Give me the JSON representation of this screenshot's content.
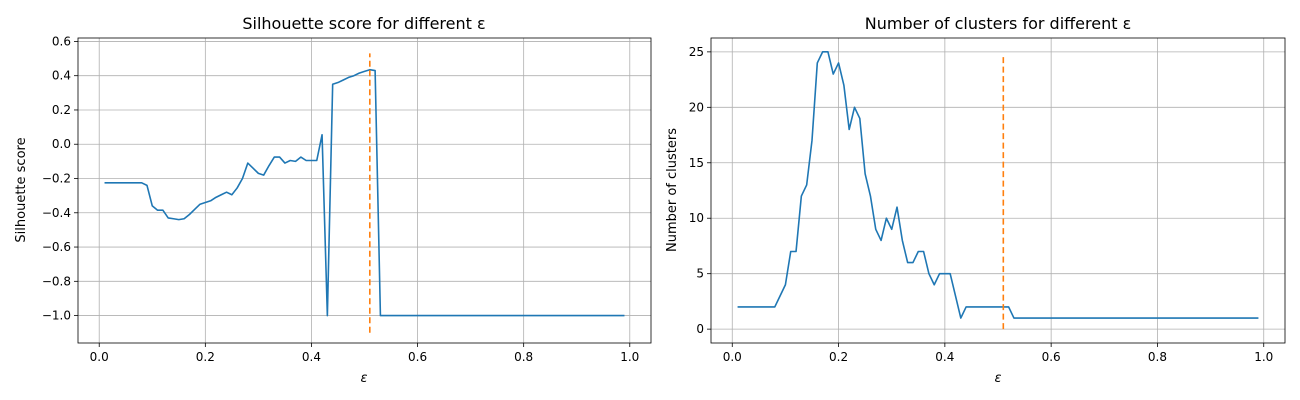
{
  "chart_data": [
    {
      "type": "line",
      "title": "Silhouette score for different ε",
      "xlabel": "ε",
      "ylabel": "Silhouette score",
      "xlim": [
        -0.04,
        1.04
      ],
      "ylim": [
        -1.16,
        0.62
      ],
      "xticks": [
        0.0,
        0.2,
        0.4,
        0.6,
        0.8,
        1.0
      ],
      "xtick_labels": [
        "0.0",
        "0.2",
        "0.4",
        "0.6",
        "0.8",
        "1.0"
      ],
      "yticks": [
        -1.0,
        -0.8,
        -0.6,
        -0.4,
        -0.2,
        0.0,
        0.2,
        0.4,
        0.6
      ],
      "ytick_labels": [
        "−1.0",
        "−0.8",
        "−0.6",
        "−0.4",
        "−0.2",
        "0.0",
        "0.2",
        "0.4",
        "0.6"
      ],
      "grid": true,
      "series": [
        {
          "color": "#1f77b4",
          "style": "solid",
          "x": [
            0.01,
            0.02,
            0.03,
            0.04,
            0.05,
            0.06,
            0.07,
            0.08,
            0.09,
            0.1,
            0.11,
            0.12,
            0.13,
            0.14,
            0.15,
            0.16,
            0.17,
            0.18,
            0.19,
            0.2,
            0.21,
            0.22,
            0.23,
            0.24,
            0.25,
            0.26,
            0.27,
            0.28,
            0.29,
            0.3,
            0.31,
            0.32,
            0.33,
            0.34,
            0.35,
            0.36,
            0.37,
            0.38,
            0.39,
            0.4,
            0.41,
            0.42,
            0.43,
            0.44,
            0.45,
            0.46,
            0.47,
            0.48,
            0.49,
            0.5,
            0.51,
            0.52,
            0.53,
            0.54,
            0.6,
            0.7,
            0.8,
            0.9,
            0.99
          ],
          "y": [
            -0.225,
            -0.225,
            -0.225,
            -0.225,
            -0.225,
            -0.225,
            -0.225,
            -0.225,
            -0.24,
            -0.36,
            -0.385,
            -0.385,
            -0.43,
            -0.435,
            -0.44,
            -0.435,
            -0.41,
            -0.38,
            -0.35,
            -0.34,
            -0.33,
            -0.31,
            -0.295,
            -0.28,
            -0.295,
            -0.255,
            -0.2,
            -0.11,
            -0.14,
            -0.17,
            -0.18,
            -0.125,
            -0.075,
            -0.075,
            -0.11,
            -0.095,
            -0.1,
            -0.075,
            -0.095,
            -0.095,
            -0.095,
            0.055,
            -1.0,
            0.35,
            0.36,
            0.375,
            0.39,
            0.4,
            0.415,
            0.425,
            0.435,
            0.43,
            -1.0,
            -1.0,
            -1.0,
            -1.0,
            -1.0,
            -1.0,
            -1.0
          ]
        },
        {
          "color": "#ff7f0e",
          "style": "dashed",
          "x": [
            0.51,
            0.51
          ],
          "y": [
            -1.1,
            0.53
          ]
        }
      ]
    },
    {
      "type": "line",
      "title": "Number of clusters for different ε",
      "xlabel": "ε",
      "ylabel": "Number of clusters",
      "xlim": [
        -0.04,
        1.04
      ],
      "ylim": [
        -1.25,
        26.25
      ],
      "xticks": [
        0.0,
        0.2,
        0.4,
        0.6,
        0.8,
        1.0
      ],
      "xtick_labels": [
        "0.0",
        "0.2",
        "0.4",
        "0.6",
        "0.8",
        "1.0"
      ],
      "yticks": [
        0,
        5,
        10,
        15,
        20,
        25
      ],
      "ytick_labels": [
        "0",
        "5",
        "10",
        "15",
        "20",
        "25"
      ],
      "grid": true,
      "series": [
        {
          "color": "#1f77b4",
          "style": "solid",
          "x": [
            0.01,
            0.02,
            0.03,
            0.04,
            0.05,
            0.06,
            0.07,
            0.08,
            0.09,
            0.1,
            0.11,
            0.12,
            0.13,
            0.14,
            0.15,
            0.16,
            0.17,
            0.18,
            0.19,
            0.2,
            0.21,
            0.22,
            0.23,
            0.24,
            0.25,
            0.26,
            0.27,
            0.28,
            0.29,
            0.3,
            0.31,
            0.32,
            0.33,
            0.34,
            0.35,
            0.36,
            0.37,
            0.38,
            0.39,
            0.4,
            0.41,
            0.42,
            0.43,
            0.44,
            0.45,
            0.46,
            0.47,
            0.48,
            0.49,
            0.5,
            0.51,
            0.52,
            0.53,
            0.54,
            0.6,
            0.7,
            0.8,
            0.9,
            0.99
          ],
          "y": [
            2,
            2,
            2,
            2,
            2,
            2,
            2,
            2,
            3,
            4,
            7,
            7,
            12,
            13,
            17,
            24,
            25,
            25,
            23,
            24,
            22,
            18,
            20,
            19,
            14,
            12,
            9,
            8,
            10,
            9,
            11,
            8,
            6,
            6,
            7,
            7,
            5,
            4,
            5,
            5,
            5,
            3,
            1,
            2,
            2,
            2,
            2,
            2,
            2,
            2,
            2,
            2,
            1,
            1,
            1,
            1,
            1,
            1,
            1
          ]
        },
        {
          "color": "#ff7f0e",
          "style": "dashed",
          "x": [
            0.51,
            0.51
          ],
          "y": [
            0,
            24.8
          ]
        }
      ]
    }
  ]
}
